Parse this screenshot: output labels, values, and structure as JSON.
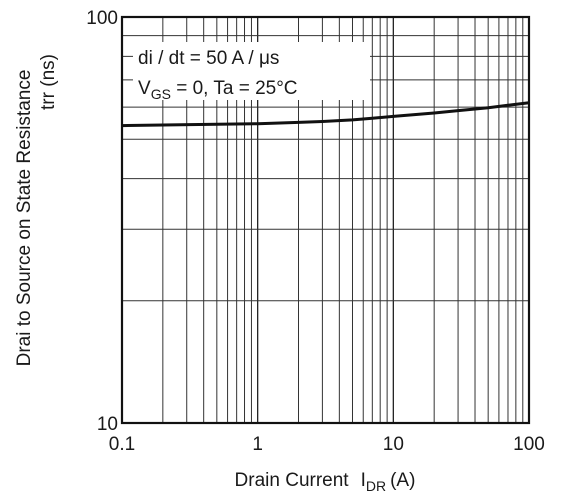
{
  "chart_data": {
    "type": "line",
    "title": "",
    "xlabel": "Drain Current",
    "xlabel_symbol": "I",
    "xlabel_subscript": "DR",
    "xlabel_unit": "(A)",
    "ylabel": "Drai to Source on State Resistance",
    "ylabel_line2": "trr (ns)",
    "xscale": "log",
    "yscale": "log",
    "xlim": [
      0.1,
      100
    ],
    "ylim": [
      10,
      100
    ],
    "grid": true,
    "xticks": [
      {
        "value": 0.1,
        "label": "0.1"
      },
      {
        "value": 1,
        "label": "1"
      },
      {
        "value": 10,
        "label": "10"
      },
      {
        "value": 100,
        "label": "100"
      }
    ],
    "yticks": [
      {
        "value": 10,
        "label": "10"
      },
      {
        "value": 100,
        "label": "100"
      }
    ],
    "series": [
      {
        "x": [
          0.1,
          0.2,
          0.5,
          1,
          2,
          3,
          5,
          7,
          10,
          20,
          30,
          50,
          70,
          100
        ],
        "y": [
          54,
          54.2,
          54.4,
          54.6,
          55,
          55.3,
          55.8,
          56.3,
          56.9,
          58,
          58.8,
          59.8,
          60.6,
          61.5
        ]
      }
    ],
    "annotations": {
      "line1": "di / dt = 50 A / μs",
      "line2_symbol": "V",
      "line2_subscript": "GS",
      "line2_rest": " = 0, Ta = 25°C"
    }
  }
}
